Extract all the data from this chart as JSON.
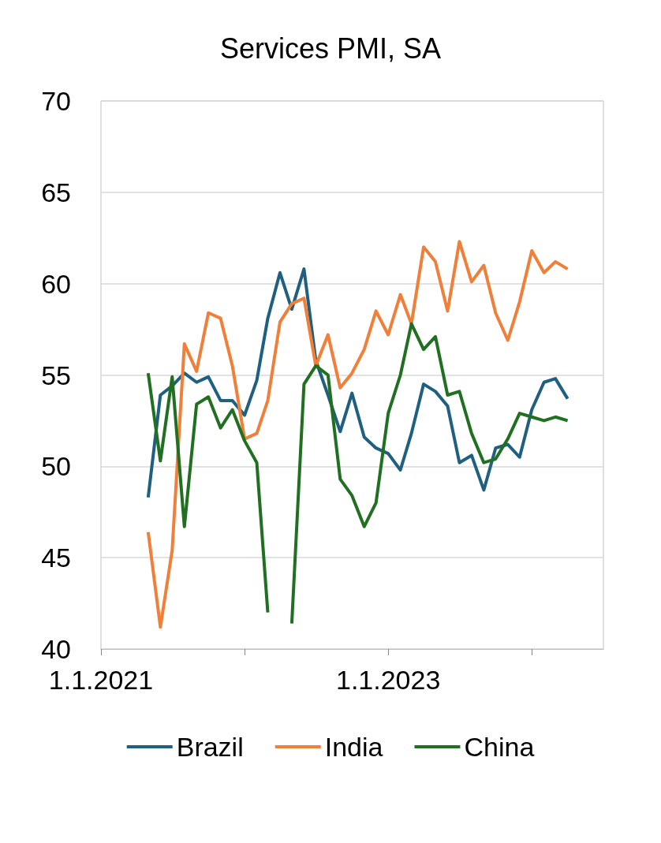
{
  "chart_data": {
    "type": "line",
    "title": "Services PMI, SA",
    "x": [
      "2021-05",
      "2021-06",
      "2021-07",
      "2021-08",
      "2021-09",
      "2021-10",
      "2021-11",
      "2021-12",
      "2022-01",
      "2022-02",
      "2022-03",
      "2022-04",
      "2022-05",
      "2022-06",
      "2022-07",
      "2022-08",
      "2022-09",
      "2022-10",
      "2022-11",
      "2022-12",
      "2023-01",
      "2023-02",
      "2023-03",
      "2023-04",
      "2023-05",
      "2023-06",
      "2023-07",
      "2023-08",
      "2023-09",
      "2023-10",
      "2023-11",
      "2023-12",
      "2024-01",
      "2024-02",
      "2024-03",
      "2024-04"
    ],
    "series": [
      {
        "name": "Brazil",
        "color": "#1f5f80",
        "values": [
          48.3,
          53.9,
          54.4,
          55.1,
          54.6,
          54.9,
          53.6,
          53.6,
          52.8,
          54.7,
          58.1,
          60.6,
          58.6,
          60.8,
          55.8,
          53.9,
          51.9,
          54.0,
          51.6,
          51.0,
          50.7,
          49.8,
          51.8,
          54.5,
          54.1,
          53.3,
          50.2,
          50.6,
          48.7,
          51.0,
          51.2,
          50.5,
          53.1,
          54.6,
          54.8,
          53.7
        ]
      },
      {
        "name": "India",
        "color": "#f07f3a",
        "values": [
          46.4,
          41.2,
          45.4,
          56.7,
          55.2,
          58.4,
          58.1,
          55.5,
          51.5,
          51.8,
          53.6,
          57.9,
          58.9,
          59.2,
          55.5,
          57.2,
          54.3,
          55.1,
          56.4,
          58.5,
          57.2,
          59.4,
          57.8,
          62.0,
          61.2,
          58.5,
          62.3,
          60.1,
          61.0,
          58.4,
          56.9,
          59.0,
          61.8,
          60.6,
          61.2,
          60.8
        ]
      },
      {
        "name": "China",
        "color": "#217021",
        "values": [
          55.1,
          50.3,
          54.9,
          46.7,
          53.4,
          53.8,
          52.1,
          53.1,
          51.4,
          50.2,
          42.0,
          null,
          41.4,
          54.5,
          55.5,
          55.0,
          49.3,
          48.4,
          46.7,
          48.0,
          52.9,
          55.0,
          57.8,
          56.4,
          57.1,
          53.9,
          54.1,
          51.8,
          50.2,
          50.4,
          51.5,
          52.9,
          52.7,
          52.5,
          52.7,
          52.5
        ]
      }
    ],
    "xlim": [
      "2021-01",
      "2024-07"
    ],
    "xticks": [
      {
        "value": "2021-01",
        "label": "1.1.2021"
      },
      {
        "value": "2022-01",
        "label": null
      },
      {
        "value": "2023-01",
        "label": "1.1.2023"
      },
      {
        "value": "2024-01",
        "label": null
      }
    ],
    "ylim": [
      40,
      70
    ],
    "yticks": [
      40,
      45,
      50,
      55,
      60,
      65,
      70
    ],
    "grid": "y",
    "legend": "bottom",
    "marker": "none",
    "line_style": "solid"
  }
}
